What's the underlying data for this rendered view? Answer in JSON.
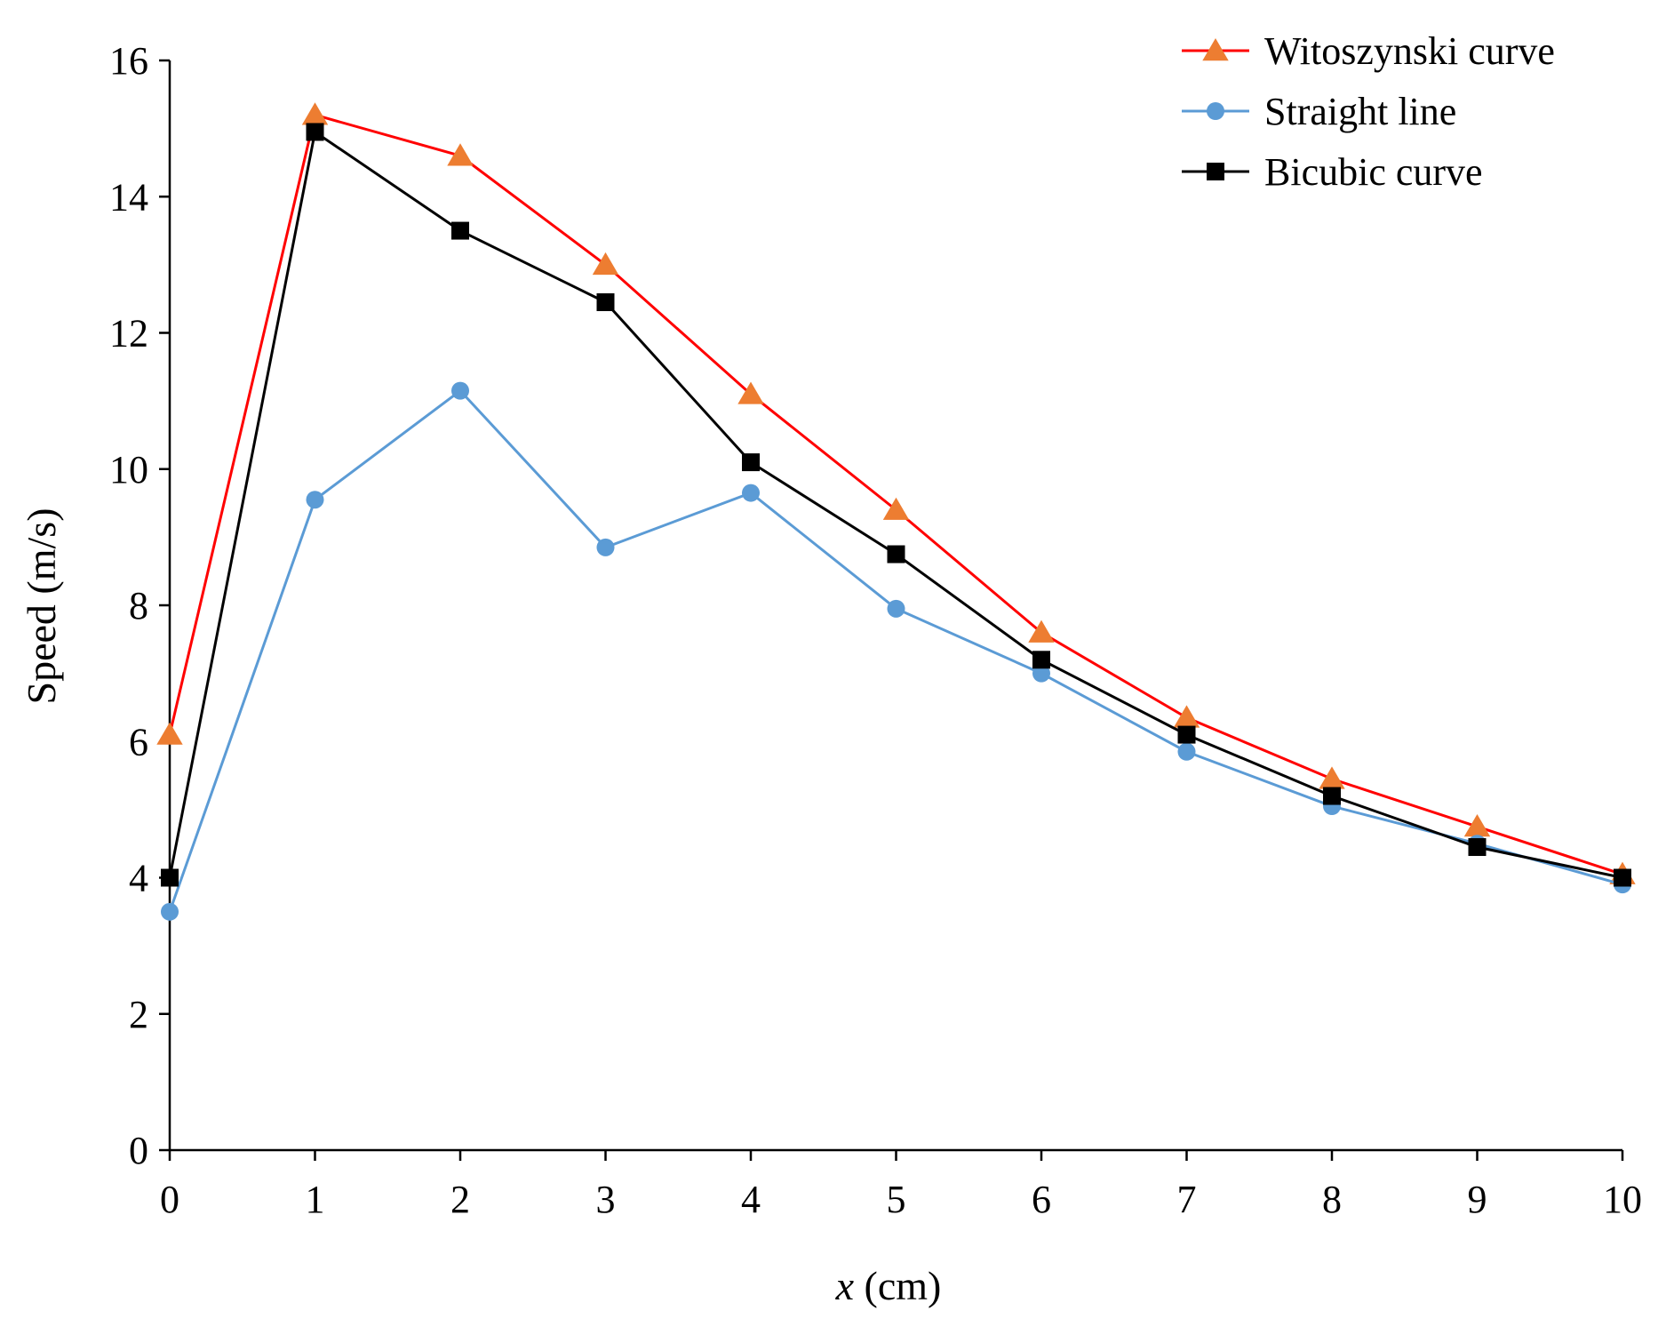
{
  "chart_data": {
    "type": "line",
    "title": "",
    "xlabel": "x (cm)",
    "xlabel_parts": {
      "var": "x",
      "unit": " (cm)"
    },
    "ylabel": "Speed (m/s)",
    "x": [
      0,
      1,
      2,
      3,
      4,
      5,
      6,
      7,
      8,
      9,
      10
    ],
    "xlim": [
      0,
      10
    ],
    "ylim": [
      0,
      16
    ],
    "xticks": [
      0,
      1,
      2,
      3,
      4,
      5,
      6,
      7,
      8,
      9,
      10
    ],
    "yticks": [
      0,
      2,
      4,
      6,
      8,
      10,
      12,
      14,
      16
    ],
    "grid": false,
    "legend_position": "top-right",
    "series": [
      {
        "name": "Witoszynski curve",
        "line_color": "#ff0000",
        "marker_color": "#ed7d31",
        "marker": "triangle",
        "values": [
          6.1,
          15.2,
          14.6,
          13.0,
          11.1,
          9.4,
          7.6,
          6.35,
          5.45,
          4.75,
          4.05
        ]
      },
      {
        "name": "Straight line",
        "line_color": "#5b9bd5",
        "marker_color": "#5b9bd5",
        "marker": "circle",
        "values": [
          3.5,
          9.55,
          11.15,
          8.85,
          9.65,
          7.95,
          7.0,
          5.85,
          5.05,
          4.5,
          3.9
        ]
      },
      {
        "name": "Bicubic curve",
        "line_color": "#000000",
        "marker_color": "#000000",
        "marker": "square",
        "values": [
          4.0,
          14.95,
          13.5,
          12.45,
          10.1,
          8.75,
          7.2,
          6.1,
          5.2,
          4.45,
          4.0
        ]
      }
    ]
  }
}
